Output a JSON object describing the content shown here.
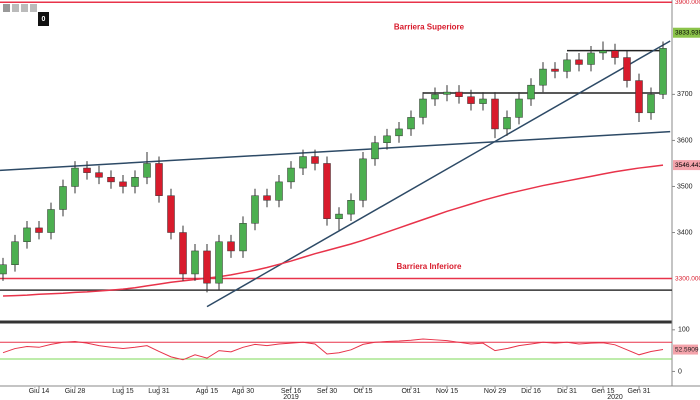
{
  "toolbar": {
    "badge": "0"
  },
  "chart_data": {
    "type": "candlestick",
    "categories": [
      null,
      null,
      null,
      "Giu 14",
      null,
      null,
      "Giu 28",
      null,
      null,
      null,
      "Lug 15",
      null,
      null,
      "Lug 31",
      null,
      null,
      null,
      "Ago 15",
      null,
      null,
      "Ago 30",
      null,
      null,
      null,
      "Set 16",
      null,
      null,
      "Set 30",
      null,
      null,
      "Ott 15",
      null,
      null,
      null,
      "Ott 31",
      null,
      null,
      "Nov 15",
      null,
      null,
      null,
      "Nov 29",
      null,
      null,
      "Dic 16",
      null,
      null,
      "Dic 31",
      null,
      null,
      "Gen 15",
      null,
      null,
      "Gen 31",
      null,
      null
    ],
    "year_labels": [
      {
        "label": "2019",
        "at": 24
      },
      {
        "label": "2020",
        "at": 51
      }
    ],
    "ohlc": {
      "up_color": "#4caf50",
      "down_color": "#d81b2c",
      "open": [
        3310,
        3330,
        3380,
        3410,
        3400,
        3450,
        3500,
        3540,
        3530,
        3520,
        3510,
        3500,
        3520,
        3550,
        3480,
        3400,
        3310,
        3360,
        3290,
        3380,
        3360,
        3420,
        3480,
        3470,
        3510,
        3540,
        3565,
        3550,
        3430,
        3440,
        3470,
        3560,
        3595,
        3610,
        3625,
        3650,
        3690,
        3700,
        3705,
        3695,
        3680,
        3690,
        3625,
        3650,
        3690,
        3720,
        3755,
        3750,
        3775,
        3765,
        3790,
        3795,
        3780,
        3730,
        3660,
        3700
      ],
      "high": [
        3345,
        3395,
        3425,
        3425,
        3465,
        3515,
        3555,
        3555,
        3545,
        3535,
        3525,
        3535,
        3575,
        3565,
        3495,
        3415,
        3375,
        3375,
        3395,
        3395,
        3435,
        3495,
        3495,
        3525,
        3555,
        3580,
        3580,
        3565,
        3455,
        3485,
        3575,
        3610,
        3625,
        3640,
        3665,
        3705,
        3715,
        3720,
        3720,
        3710,
        3705,
        3705,
        3665,
        3705,
        3735,
        3770,
        3770,
        3790,
        3790,
        3805,
        3815,
        3810,
        3795,
        3745,
        3715,
        3815
      ],
      "low": [
        3295,
        3315,
        3365,
        3385,
        3385,
        3435,
        3485,
        3515,
        3505,
        3495,
        3485,
        3485,
        3505,
        3465,
        3385,
        3295,
        3295,
        3270,
        3275,
        3345,
        3345,
        3405,
        3455,
        3455,
        3495,
        3525,
        3535,
        3415,
        3405,
        3425,
        3455,
        3545,
        3580,
        3595,
        3610,
        3635,
        3675,
        3685,
        3680,
        3665,
        3665,
        3605,
        3610,
        3635,
        3675,
        3705,
        3735,
        3735,
        3750,
        3750,
        3775,
        3765,
        3715,
        3640,
        3645,
        3690
      ],
      "close": [
        3330,
        3380,
        3410,
        3400,
        3450,
        3500,
        3540,
        3530,
        3520,
        3510,
        3500,
        3520,
        3550,
        3480,
        3400,
        3310,
        3360,
        3290,
        3380,
        3360,
        3420,
        3480,
        3470,
        3510,
        3540,
        3565,
        3550,
        3430,
        3440,
        3470,
        3560,
        3595,
        3610,
        3625,
        3650,
        3690,
        3700,
        3705,
        3695,
        3680,
        3690,
        3625,
        3650,
        3690,
        3720,
        3755,
        3750,
        3775,
        3765,
        3790,
        3795,
        3780,
        3730,
        3660,
        3700,
        3800
      ]
    },
    "ma": {
      "color": "#e8334a",
      "values": [
        3262,
        3263,
        3264,
        3266,
        3267,
        3268,
        3270,
        3271,
        3273,
        3275,
        3277,
        3280,
        3284,
        3288,
        3292,
        3295,
        3298,
        3301,
        3304,
        3308,
        3313,
        3318,
        3324,
        3331,
        3338,
        3346,
        3354,
        3361,
        3368,
        3375,
        3383,
        3392,
        3401,
        3410,
        3419,
        3428,
        3437,
        3446,
        3454,
        3462,
        3470,
        3477,
        3484,
        3490,
        3496,
        3502,
        3507,
        3512,
        3517,
        3522,
        3527,
        3532,
        3536,
        3540,
        3543,
        3546.4434
      ]
    },
    "ylim": [
      3210,
      3905
    ],
    "yticks": [
      3400,
      3500,
      3600,
      3700
    ],
    "hlines": [
      {
        "value": 3900,
        "color": "#e8334a"
      },
      {
        "value": 3300,
        "color": "#e8334a"
      },
      {
        "value": 3275,
        "color": "#333333"
      },
      {
        "value": 3795,
        "from": 47,
        "to": 55,
        "color": "#222222"
      },
      {
        "value": 3703,
        "from": 35,
        "to": 55,
        "color": "#222222"
      }
    ],
    "trendlines": [
      {
        "x": [
          -0.25,
          55.6
        ],
        "values": [
          3535,
          3619
        ],
        "color": "#2d4a66"
      },
      {
        "x": [
          17,
          55.6
        ],
        "values": [
          3239,
          3816
        ],
        "color": "#2d4a66"
      }
    ],
    "tags": [
      {
        "value": 3900,
        "label": "3900.0000",
        "color": "#ffffff",
        "text_color": "#d81b2c"
      },
      {
        "value": 3833.9399,
        "label": "3833.9399",
        "color": "#8bc34a",
        "text_color": "#000000"
      },
      {
        "value": 3546.4434,
        "label": "3546.4434",
        "color": "#f4a3ab",
        "text_color": "#000000"
      },
      {
        "value": 3300,
        "label": "3300.0000",
        "color": "#ffffff",
        "text_color": "#d81b2c"
      }
    ],
    "annotations": [
      {
        "text": "Barriera Superiore",
        "at": 35.5,
        "value": 3845
      },
      {
        "text": "Barriera Inferiore",
        "at": 35.5,
        "value": 3325
      }
    ],
    "rsi": {
      "color": "#e8334a",
      "values": [
        45,
        55,
        60,
        58,
        65,
        70,
        72,
        68,
        62,
        58,
        55,
        58,
        62,
        48,
        35,
        28,
        40,
        32,
        50,
        47,
        58,
        65,
        62,
        66,
        68,
        70,
        66,
        42,
        45,
        52,
        65,
        70,
        72,
        73,
        75,
        78,
        76,
        74,
        70,
        66,
        68,
        50,
        55,
        62,
        66,
        70,
        68,
        70,
        66,
        68,
        69,
        64,
        52,
        40,
        48,
        52.5909
      ],
      "ylim": [
        -35,
        114
      ],
      "yticks": [
        0,
        100
      ],
      "levels": [
        {
          "value": 70,
          "color": "#e8334a"
        },
        {
          "value": 30,
          "color": "#7ed957"
        }
      ],
      "tag": {
        "value": 52.5909,
        "label": "52.5909",
        "color": "#f4a3ab"
      }
    }
  }
}
